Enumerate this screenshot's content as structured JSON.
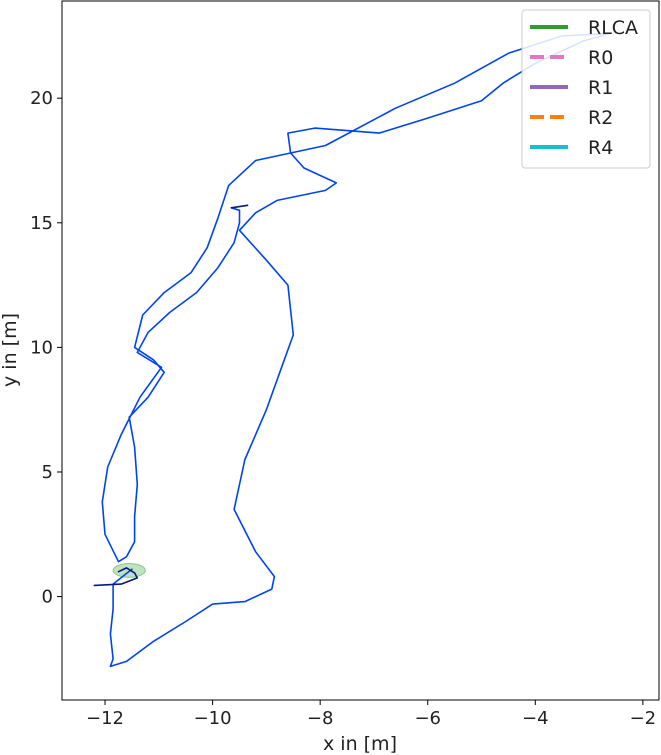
{
  "chart_data": {
    "type": "line",
    "title": "",
    "xlabel": "x in [m]",
    "ylabel": "y in [m]",
    "xlim": [
      -12.8,
      -1.7
    ],
    "ylim": [
      -4.15,
      23.9
    ],
    "xticks": [
      -12,
      -10,
      -8,
      -6,
      -4,
      -2
    ],
    "yticks": [
      0,
      5,
      10,
      15,
      20
    ],
    "grid": false,
    "legend_position": "top-right",
    "legend": [
      {
        "name": "RLCA",
        "color": "#2ca02c",
        "style": "solid"
      },
      {
        "name": "R0",
        "color": "#e377c2",
        "style": "dashed"
      },
      {
        "name": "R1",
        "color": "#9467bd",
        "style": "solid"
      },
      {
        "name": "R2",
        "color": "#ff7f0e",
        "style": "dashed"
      },
      {
        "name": "R4",
        "color": "#17becf",
        "style": "solid"
      }
    ],
    "trajectories": [
      {
        "color": "#0044ee",
        "points": [
          [
            -11.5,
            1.1
          ],
          [
            -11.85,
            0.5
          ],
          [
            -11.85,
            -0.5
          ],
          [
            -11.9,
            -1.5
          ],
          [
            -11.85,
            -2.5
          ],
          [
            -11.9,
            -2.8
          ],
          [
            -11.6,
            -2.6
          ],
          [
            -11.1,
            -1.8
          ],
          [
            -10.5,
            -1.0
          ],
          [
            -10.0,
            -0.3
          ],
          [
            -9.4,
            -0.2
          ],
          [
            -8.9,
            0.3
          ],
          [
            -8.85,
            0.8
          ],
          [
            -9.2,
            1.8
          ],
          [
            -9.6,
            3.5
          ],
          [
            -9.4,
            5.5
          ],
          [
            -9.0,
            7.5
          ],
          [
            -8.75,
            9.0
          ],
          [
            -8.5,
            10.5
          ],
          [
            -8.6,
            12.5
          ],
          [
            -9.0,
            13.5
          ],
          [
            -9.5,
            14.7
          ],
          [
            -9.2,
            15.4
          ],
          [
            -8.8,
            15.9
          ],
          [
            -7.9,
            16.3
          ],
          [
            -7.7,
            16.6
          ],
          [
            -8.3,
            17.2
          ],
          [
            -8.55,
            17.8
          ],
          [
            -8.6,
            18.6
          ],
          [
            -8.1,
            18.8
          ],
          [
            -6.9,
            18.6
          ],
          [
            -6.0,
            19.2
          ],
          [
            -5.0,
            19.9
          ],
          [
            -4.6,
            20.6
          ],
          [
            -4.0,
            21.4
          ],
          [
            -3.1,
            22.3
          ],
          [
            -2.6,
            22.6
          ],
          [
            -3.5,
            22.5
          ],
          [
            -4.5,
            21.8
          ],
          [
            -5.5,
            20.6
          ],
          [
            -6.6,
            19.6
          ],
          [
            -7.9,
            18.1
          ],
          [
            -9.2,
            17.5
          ],
          [
            -9.7,
            16.5
          ],
          [
            -9.9,
            15.2
          ],
          [
            -10.1,
            14.0
          ],
          [
            -10.4,
            13.0
          ],
          [
            -10.9,
            12.2
          ],
          [
            -11.3,
            11.3
          ],
          [
            -11.45,
            10.0
          ],
          [
            -11.1,
            9.5
          ],
          [
            -10.9,
            9.0
          ],
          [
            -11.2,
            8.0
          ],
          [
            -11.55,
            7.2
          ],
          [
            -11.45,
            6.0
          ],
          [
            -11.4,
            4.5
          ],
          [
            -11.45,
            3.2
          ],
          [
            -11.45,
            2.2
          ],
          [
            -11.6,
            1.6
          ],
          [
            -11.75,
            1.4
          ],
          [
            -12.0,
            2.5
          ],
          [
            -12.05,
            3.8
          ],
          [
            -11.95,
            5.2
          ],
          [
            -11.7,
            6.5
          ],
          [
            -11.35,
            8.0
          ],
          [
            -10.95,
            9.2
          ],
          [
            -11.4,
            9.8
          ],
          [
            -11.2,
            10.6
          ],
          [
            -10.8,
            11.4
          ],
          [
            -10.3,
            12.2
          ],
          [
            -9.9,
            13.2
          ],
          [
            -9.6,
            14.2
          ],
          [
            -9.5,
            15.0
          ],
          [
            -9.5,
            15.5
          ],
          [
            -9.65,
            15.6
          ]
        ]
      },
      {
        "color": "#0a1a7a",
        "points": [
          [
            -12.2,
            0.45
          ],
          [
            -11.7,
            0.5
          ],
          [
            -11.4,
            0.75
          ],
          [
            -11.45,
            0.95
          ],
          [
            -11.6,
            1.15
          ],
          [
            -11.75,
            1.0
          ]
        ]
      },
      {
        "color": "#0a1a7a",
        "points": [
          [
            -9.65,
            15.6
          ],
          [
            -9.35,
            15.7
          ]
        ]
      }
    ],
    "ellipse": {
      "cx": -11.55,
      "cy": 1.05,
      "rx": 0.3,
      "ry": 0.28,
      "color": "#2ca02c",
      "opacity": 0.3
    }
  }
}
